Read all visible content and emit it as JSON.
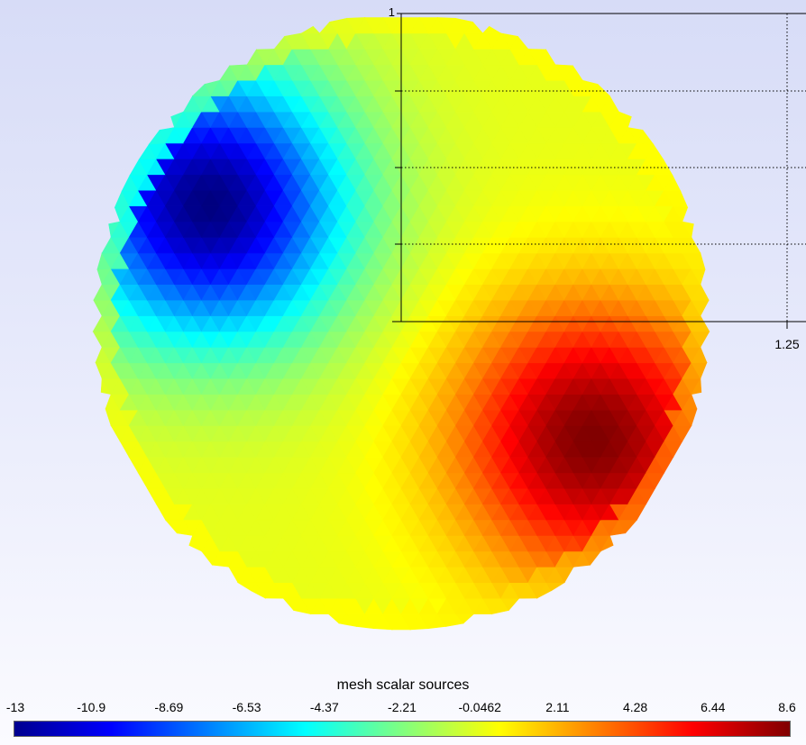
{
  "chart_data": {
    "type": "heatmap",
    "title": "mesh scalar sources",
    "colormap": "jet",
    "value_range": [
      -13,
      8.6
    ],
    "colorbar_ticks": [
      "-13",
      "-10.9",
      "-8.69",
      "-6.53",
      "-4.37",
      "-2.21",
      "-0.0462",
      "2.11",
      "4.28",
      "6.44",
      "8.6"
    ],
    "field": {
      "domain": "disk",
      "center": [
        0,
        0
      ],
      "radius": 1.0,
      "sources": [
        {
          "x": -0.62,
          "y": 0.38,
          "value": -13
        },
        {
          "x": 0.62,
          "y": -0.38,
          "value": 8.6
        }
      ]
    },
    "axis": {
      "x_tick_labels": [
        "1.25"
      ],
      "y_tick_labels": [
        "1"
      ],
      "grid": "dotted"
    }
  }
}
